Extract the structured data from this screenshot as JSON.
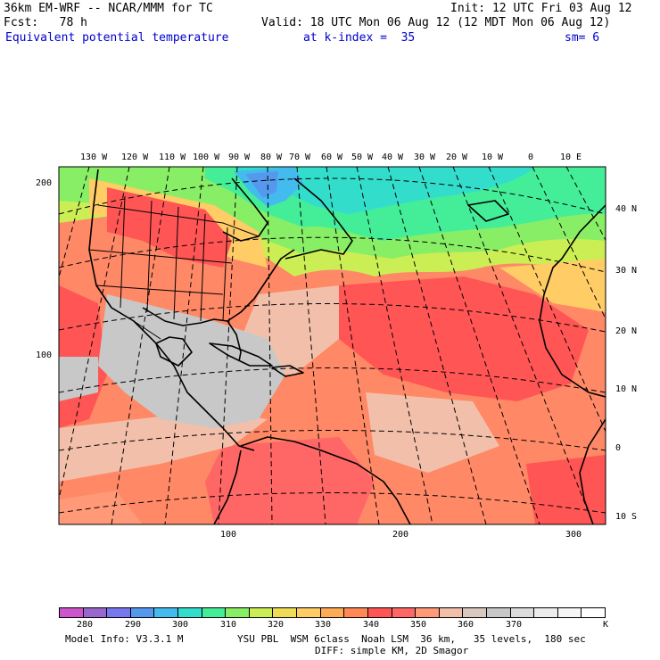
{
  "header": {
    "model_line": "36km EM-WRF -- NCAR/MMM for TC",
    "init_line": "Init: 12 UTC Fri 03 Aug 12",
    "fcst_line": "Fcst:   78 h",
    "valid_line": "Valid: 18 UTC Mon 06 Aug 12 (12 MDT Mon 06 Aug 12)",
    "field_name": "Equivalent potential temperature",
    "k_index": "at k-index =  35",
    "smoothing": "sm= 6"
  },
  "map": {
    "lon_labels": [
      "130 W",
      "120 W",
      "110 W",
      "100 W",
      "90 W",
      "80 W",
      "70 W",
      "60 W",
      "50 W",
      "40 W",
      "30 W",
      "20 W",
      "10 W",
      "0",
      "10 E"
    ],
    "lat_labels": [
      "40 N",
      "30 N",
      "20 N",
      "10 N",
      "0",
      "10 S"
    ],
    "left_axis_labels": [
      "200",
      "100"
    ],
    "bottom_axis_labels": [
      "100",
      "200",
      "300"
    ]
  },
  "colorbar": {
    "colors": [
      "#cc55cc",
      "#9966cc",
      "#7777ee",
      "#5599ee",
      "#44bbee",
      "#33ddcc",
      "#44ee99",
      "#88ee66",
      "#ccee55",
      "#eedd55",
      "#ffcc66",
      "#ffaa55",
      "#ff8855",
      "#ff5555",
      "#ff6666",
      "#ff9977",
      "#f2c0aa",
      "#d8c8bf",
      "#c8c8c8",
      "#dcdcdc",
      "#ececec",
      "#f6f6f6",
      "#ffffff"
    ],
    "labels": [
      "280",
      "290",
      "300",
      "310",
      "320",
      "330",
      "340",
      "350",
      "360",
      "370"
    ],
    "unit": "K"
  },
  "footer": {
    "model_info": "Model Info: V3.3.1 M",
    "physics": "YSU PBL  WSM 6class  Noah LSM  36 km,   35 levels,  180 sec",
    "diffusion": "DIFF: simple KM, 2D Smagor"
  }
}
